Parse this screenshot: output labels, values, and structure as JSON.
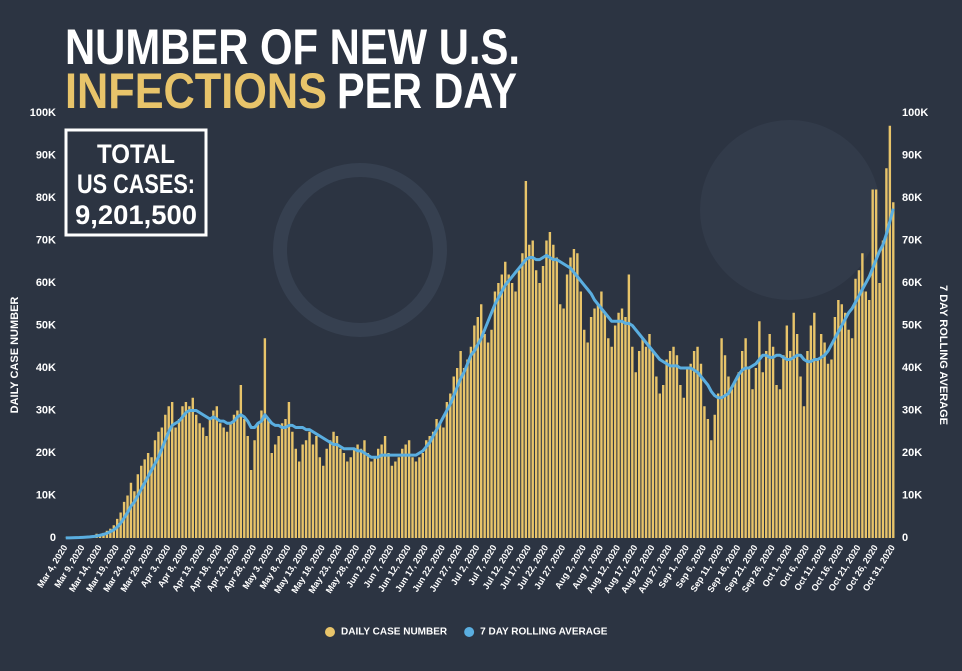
{
  "chart_data": {
    "type": "bar_line",
    "title_line1": "NUMBER OF NEW U.S.",
    "title_highlight": "INFECTIONS",
    "title_rest": "PER DAY",
    "total_box": {
      "lines": [
        "TOTAL",
        "US CASES:"
      ],
      "value": "9,201,500"
    },
    "y_label": "DAILY CASE NUMBER",
    "y2_label": "7 DAY ROLLING AVERAGE",
    "legend_position": "bottom",
    "categories": [
      "Mar 4, 2020",
      null,
      null,
      null,
      null,
      "Mar 9, 2020",
      null,
      null,
      null,
      null,
      "Mar 14, 2020",
      null,
      null,
      null,
      null,
      "Mar 19, 2020",
      null,
      null,
      null,
      null,
      "Mar 24, 2020",
      null,
      null,
      null,
      null,
      "Mar 29, 2020",
      null,
      null,
      null,
      null,
      "Apr 3, 2020",
      null,
      null,
      null,
      null,
      "Apr 8, 2020",
      null,
      null,
      null,
      null,
      "Apr 13, 2020",
      null,
      null,
      null,
      null,
      "Apr 18, 2020",
      null,
      null,
      null,
      null,
      "Apr 23, 2020",
      null,
      null,
      null,
      null,
      "Apr 28, 2020",
      null,
      null,
      null,
      null,
      "May 3, 2020",
      null,
      null,
      null,
      null,
      "May 8, 2020",
      null,
      null,
      null,
      null,
      "May 13, 2020",
      null,
      null,
      null,
      null,
      "May 18, 2020",
      null,
      null,
      null,
      null,
      "May 23, 2020",
      null,
      null,
      null,
      null,
      "May 28, 2020",
      null,
      null,
      null,
      null,
      "Jun 2, 2020",
      null,
      null,
      null,
      null,
      "Jun 7, 2020",
      null,
      null,
      null,
      null,
      "Jun 12, 2020",
      null,
      null,
      null,
      null,
      "Jun 17, 2020",
      null,
      null,
      null,
      null,
      "Jun 22, 2020",
      null,
      null,
      null,
      null,
      "Jun 27, 2020",
      null,
      null,
      null,
      null,
      "Jul 2, 2020",
      null,
      null,
      null,
      null,
      "Jul 7, 2020",
      null,
      null,
      null,
      null,
      "Jul 12, 2020",
      null,
      null,
      null,
      null,
      "Jul 17, 2020",
      null,
      null,
      null,
      null,
      "Jul 22, 2020",
      null,
      null,
      null,
      null,
      "Jul 27, 2020",
      null,
      null,
      null,
      null,
      null,
      "Aug 2, 2020",
      null,
      null,
      null,
      null,
      "Aug 7, 2020",
      null,
      null,
      null,
      null,
      "Aug 12, 2020",
      null,
      null,
      null,
      null,
      "Aug 17, 2020",
      null,
      null,
      null,
      null,
      "Aug 22, 2020",
      null,
      null,
      null,
      null,
      "Aug 27, 2020",
      null,
      null,
      null,
      null,
      "Sep 1, 2020",
      null,
      null,
      null,
      null,
      "Sep 6, 2020",
      null,
      null,
      null,
      null,
      "Sep 11, 2020",
      null,
      null,
      null,
      null,
      "Sep 16, 2020",
      null,
      null,
      null,
      null,
      "Sep 21, 2020",
      null,
      null,
      null,
      null,
      "Sep 26, 2020",
      null,
      null,
      null,
      null,
      "Oct 1, 2020",
      null,
      null,
      null,
      null,
      "Oct 6, 2020",
      null,
      null,
      null,
      null,
      "Oct 11, 2020",
      null,
      null,
      null,
      null,
      "Oct 16, 2020",
      null,
      null,
      null,
      null,
      "Oct 21, 2020",
      null,
      null,
      null,
      null,
      "Oct 26, 2020",
      null,
      null,
      null,
      null,
      "Oct 31, 2020"
    ],
    "series": [
      {
        "name": "DAILY CASE NUMBER",
        "color": "#e8c46a",
        "values": [
          30,
          60,
          70,
          120,
          150,
          200,
          300,
          450,
          600,
          1000,
          900,
          1200,
          1700,
          2200,
          3000,
          4500,
          6000,
          8500,
          10000,
          13000,
          11000,
          15000,
          17000,
          18500,
          20000,
          19000,
          23000,
          25000,
          26000,
          29000,
          31000,
          32000,
          26000,
          28000,
          31000,
          32000,
          31000,
          33000,
          29000,
          27000,
          26000,
          24000,
          28000,
          30000,
          31000,
          27000,
          26000,
          25000,
          27000,
          29000,
          30000,
          36000,
          28000,
          24000,
          16000,
          23000,
          27000,
          30000,
          47000,
          28000,
          20000,
          22000,
          24000,
          27000,
          28000,
          32000,
          25000,
          21000,
          18000,
          22000,
          23000,
          25000,
          22000,
          24000,
          19000,
          17000,
          21000,
          23000,
          25000,
          24000,
          21000,
          20000,
          18000,
          19000,
          21000,
          22000,
          21000,
          23000,
          20000,
          18000,
          19000,
          21000,
          22000,
          24000,
          20000,
          17000,
          18000,
          19000,
          21000,
          22000,
          23000,
          19000,
          18000,
          19000,
          20000,
          23000,
          24000,
          25000,
          28000,
          27000,
          26000,
          32000,
          34000,
          38000,
          40000,
          44000,
          40000,
          42000,
          45000,
          50000,
          52000,
          55000,
          48000,
          46000,
          49000,
          58000,
          60000,
          62000,
          65000,
          62000,
          60000,
          58000,
          63000,
          67000,
          84000,
          69000,
          70000,
          63000,
          60000,
          64000,
          70000,
          72000,
          69000,
          66000,
          55000,
          54000,
          62000,
          66000,
          68000,
          67000,
          58000,
          49000,
          46000,
          52000,
          54000,
          55000,
          58000,
          53000,
          47000,
          45000,
          50000,
          53000,
          54000,
          52000,
          62000,
          45000,
          39000,
          44000,
          47000,
          45000,
          48000,
          44000,
          38000,
          34000,
          36000,
          42000,
          44000,
          45000,
          43000,
          36000,
          33000,
          40000,
          41000,
          44000,
          45000,
          41000,
          31000,
          28000,
          23000,
          29000,
          34000,
          47000,
          43000,
          38000,
          35000,
          37000,
          39000,
          44000,
          47000,
          40000,
          35000,
          40000,
          51000,
          39000,
          44000,
          48000,
          45000,
          36000,
          35000,
          43000,
          50000,
          44000,
          53000,
          48000,
          38000,
          31000,
          44000,
          50000,
          53000,
          42000,
          48000,
          46000,
          41000,
          42000,
          52000,
          56000,
          55000,
          53000,
          49000,
          47000,
          61000,
          63000,
          67000,
          58000,
          56000,
          82000,
          82000,
          60000,
          70000,
          87000,
          97000,
          79000
        ]
      },
      {
        "name": "7 DAY ROLLING AVERAGE",
        "color": "#5aaee0",
        "axis": "y2",
        "values": [
          20,
          40,
          60,
          90,
          110,
          150,
          200,
          260,
          340,
          480,
          650,
          850,
          1100,
          1500,
          1900,
          2600,
          3500,
          4700,
          6000,
          7500,
          8500,
          10000,
          11500,
          13000,
          14500,
          16000,
          17500,
          19000,
          21000,
          23000,
          25000,
          26500,
          27000,
          27500,
          28500,
          29500,
          30000,
          30000,
          30000,
          29500,
          29000,
          28500,
          28000,
          28500,
          28000,
          27500,
          27500,
          27000,
          27000,
          27500,
          28500,
          29000,
          28500,
          27500,
          26000,
          26000,
          27000,
          27500,
          29000,
          28000,
          27000,
          26500,
          26500,
          26000,
          26000,
          26500,
          26500,
          26000,
          26000,
          26000,
          25500,
          25500,
          25000,
          24500,
          24000,
          23500,
          23000,
          22500,
          22000,
          22000,
          21500,
          21000,
          21000,
          21000,
          21000,
          20500,
          20500,
          20000,
          19500,
          19000,
          19000,
          19000,
          19500,
          19500,
          19500,
          19500,
          19500,
          19500,
          19500,
          19500,
          19500,
          19500,
          19500,
          20000,
          20500,
          21500,
          22500,
          24000,
          25500,
          27000,
          28500,
          30000,
          31500,
          33500,
          35500,
          37500,
          39000,
          41000,
          43000,
          44000,
          45500,
          47000,
          49000,
          51000,
          53000,
          55000,
          56500,
          58000,
          59500,
          60500,
          61500,
          62500,
          63500,
          64500,
          65500,
          66000,
          66000,
          65500,
          65500,
          66000,
          66500,
          66000,
          65500,
          65500,
          65000,
          64500,
          64000,
          63500,
          62500,
          61500,
          60500,
          59500,
          58500,
          57500,
          56000,
          55000,
          54000,
          53000,
          52000,
          51000,
          51000,
          51000,
          51000,
          50500,
          50500,
          50000,
          49000,
          48000,
          47000,
          46000,
          45000,
          44000,
          43000,
          42000,
          41500,
          41000,
          40500,
          40500,
          40500,
          40000,
          40000,
          40000,
          40000,
          39500,
          39000,
          38000,
          37000,
          36000,
          34500,
          33500,
          33000,
          33000,
          33500,
          34000,
          35500,
          37000,
          38500,
          39500,
          40000,
          40000,
          40500,
          41000,
          42000,
          43000,
          43000,
          42500,
          42500,
          43000,
          43000,
          42500,
          42000,
          42000,
          42500,
          43000,
          43000,
          42000,
          41500,
          41500,
          42000,
          42000,
          42500,
          43000,
          44000,
          45500,
          47000,
          48500,
          50000,
          51500,
          53000,
          54000,
          55500,
          57000,
          58500,
          60000,
          61500,
          63500,
          65500,
          67500,
          69000,
          71500,
          74500,
          77500
        ]
      }
    ],
    "ylim": [
      0,
      100000
    ],
    "yticks": [
      0,
      {
        "value": 10000,
        "label": "10K"
      },
      {
        "value": 20000,
        "label": "20K"
      },
      {
        "value": 30000,
        "label": "30K"
      },
      {
        "value": 40000,
        "label": "40K"
      },
      {
        "value": 50000,
        "label": "50K"
      },
      {
        "value": 60000,
        "label": "60K"
      },
      {
        "value": 70000,
        "label": "70K"
      },
      {
        "value": 80000,
        "label": "80K"
      },
      {
        "value": 90000,
        "label": "90K"
      },
      {
        "value": 100000,
        "label": "100K"
      }
    ],
    "y2lim": [
      0,
      100000
    ],
    "y2ticks": [
      0,
      {
        "value": 10000,
        "label": "10K"
      },
      {
        "value": 20000,
        "label": "20K"
      },
      {
        "value": 30000,
        "label": "30K"
      },
      {
        "value": 40000,
        "label": "40K"
      },
      {
        "value": 50000,
        "label": "50K"
      },
      {
        "value": 60000,
        "label": "60K"
      },
      {
        "value": 70000,
        "label": "70K"
      },
      {
        "value": 80000,
        "label": "80K"
      },
      {
        "value": 90000,
        "label": "90K"
      },
      {
        "value": 100000,
        "label": "100K"
      }
    ]
  }
}
